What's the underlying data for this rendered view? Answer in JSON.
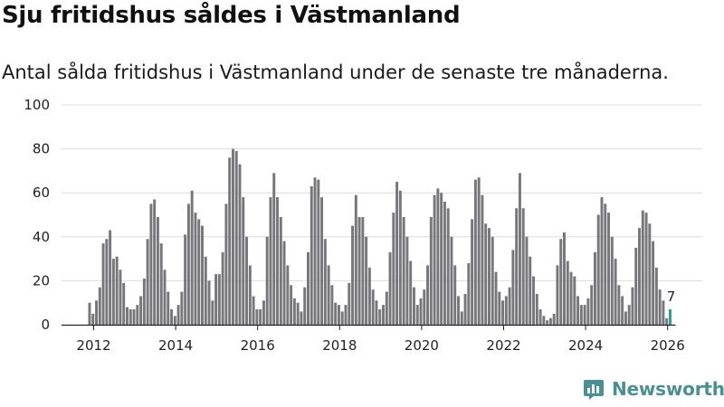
{
  "chart_data": {
    "type": "bar",
    "title": "Sju fritidshus såldes i Västmanland",
    "subtitle": "Antal sålda fritidshus i Västmanland under de senaste tre månaderna.",
    "xlabel": "",
    "ylabel": "",
    "ylim": [
      0,
      100
    ],
    "y_ticks": [
      0,
      20,
      40,
      60,
      80,
      100
    ],
    "x_ticks": [
      2012,
      2014,
      2016,
      2018,
      2020,
      2022,
      2024,
      2026
    ],
    "x_start": 2011.9,
    "x_step": 0.0833,
    "values": [
      10,
      5,
      11,
      17,
      37,
      39,
      43,
      30,
      31,
      25,
      19,
      8,
      7,
      7,
      9,
      13,
      21,
      39,
      55,
      57,
      49,
      37,
      25,
      15,
      7,
      4,
      9,
      15,
      41,
      55,
      61,
      51,
      48,
      45,
      31,
      20,
      11,
      23,
      23,
      33,
      55,
      76,
      80,
      79,
      73,
      58,
      40,
      27,
      13,
      7,
      7,
      11,
      40,
      58,
      69,
      58,
      49,
      38,
      27,
      18,
      12,
      10,
      6,
      17,
      33,
      63,
      67,
      66,
      58,
      39,
      27,
      18,
      10,
      9,
      6,
      9,
      19,
      45,
      59,
      49,
      49,
      40,
      26,
      16,
      11,
      7,
      9,
      15,
      33,
      51,
      65,
      61,
      49,
      40,
      29,
      17,
      9,
      12,
      16,
      27,
      49,
      59,
      62,
      60,
      56,
      53,
      40,
      27,
      13,
      6,
      14,
      28,
      48,
      66,
      67,
      59,
      46,
      44,
      40,
      24,
      15,
      11,
      13,
      17,
      34,
      53,
      69,
      53,
      40,
      31,
      22,
      14,
      7,
      4,
      2,
      3,
      5,
      27,
      39,
      42,
      29,
      24,
      22,
      13,
      9,
      9,
      12,
      18,
      33,
      50,
      58,
      55,
      51,
      40,
      30,
      18,
      13,
      6,
      9,
      17,
      35,
      44,
      52,
      51,
      46,
      38,
      26,
      16,
      11,
      3,
      7
    ],
    "last_value_label": "7",
    "highlight_last": true,
    "colors": {
      "bar": "#77777a",
      "highlight": "#2a9d96",
      "grid": "#dcdcdc",
      "axis": "#222222",
      "brand": "#4a8f91"
    }
  },
  "brand": {
    "name": "Newsworthy",
    "icon": "chart-logo-icon"
  }
}
